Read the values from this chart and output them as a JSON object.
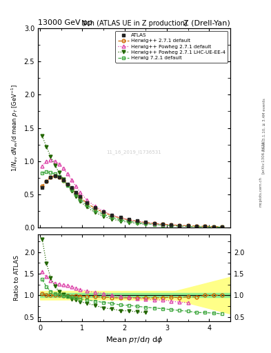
{
  "title_top": "13000 GeV pp",
  "title_right": "Z (Drell-Yan)",
  "plot_title": "Nch (ATLAS UE in Z production)",
  "ylabel_main": "1/N_{ev} dN_{ev}/d mean p_{T}  [GeV^{-1}]",
  "ylabel_ratio": "Ratio to ATLAS",
  "xlabel": "Mean p_{T}/dη dφ",
  "ylim_main": [
    0.0,
    3.0
  ],
  "ylim_ratio": [
    0.4,
    2.4
  ],
  "xlim": [
    -0.05,
    4.5
  ],
  "rivet_text": "Rivet 3.1.10, ≥ 3.4M events",
  "arxiv_text": "[arXiv:1306.3436]",
  "mcplots_text": "mcplots.cern.ch",
  "watermark": "11_16_2019_I1736531",
  "atlas_x": [
    0.05,
    0.15,
    0.25,
    0.35,
    0.45,
    0.55,
    0.65,
    0.75,
    0.85,
    0.95,
    1.1,
    1.3,
    1.5,
    1.7,
    1.9,
    2.1,
    2.3,
    2.5,
    2.7,
    2.9,
    3.1,
    3.3,
    3.5,
    3.7,
    3.9,
    4.1,
    4.3
  ],
  "atlas_y": [
    0.6,
    0.7,
    0.76,
    0.78,
    0.76,
    0.72,
    0.66,
    0.6,
    0.53,
    0.47,
    0.38,
    0.3,
    0.24,
    0.19,
    0.155,
    0.125,
    0.102,
    0.083,
    0.068,
    0.055,
    0.045,
    0.037,
    0.03,
    0.025,
    0.02,
    0.017,
    0.014
  ],
  "atlas_yerr": [
    0.015,
    0.015,
    0.015,
    0.015,
    0.015,
    0.015,
    0.012,
    0.012,
    0.01,
    0.01,
    0.008,
    0.007,
    0.006,
    0.005,
    0.004,
    0.003,
    0.003,
    0.002,
    0.002,
    0.002,
    0.001,
    0.001,
    0.001,
    0.001,
    0.001,
    0.001,
    0.001
  ],
  "hw271_x": [
    0.05,
    0.15,
    0.25,
    0.35,
    0.45,
    0.55,
    0.65,
    0.75,
    0.85,
    0.95,
    1.1,
    1.3,
    1.5,
    1.7,
    1.9,
    2.1,
    2.3,
    2.5,
    2.7,
    2.9,
    3.1,
    3.3,
    3.5,
    3.7,
    3.9,
    4.1,
    4.3
  ],
  "hw271_y": [
    0.62,
    0.7,
    0.76,
    0.78,
    0.76,
    0.71,
    0.65,
    0.58,
    0.52,
    0.46,
    0.37,
    0.29,
    0.23,
    0.18,
    0.145,
    0.118,
    0.096,
    0.078,
    0.064,
    0.052,
    0.043,
    0.035,
    0.029,
    0.024,
    0.02,
    0.017,
    0.014
  ],
  "hw271pow_x": [
    0.05,
    0.15,
    0.25,
    0.35,
    0.45,
    0.55,
    0.65,
    0.75,
    0.85,
    0.95,
    1.1,
    1.3,
    1.5,
    1.7,
    1.9,
    2.1,
    2.3,
    2.5,
    2.7,
    2.9,
    3.1,
    3.3,
    3.5
  ],
  "hw271pow_y": [
    0.93,
    1.0,
    1.02,
    1.0,
    0.96,
    0.89,
    0.81,
    0.72,
    0.62,
    0.53,
    0.42,
    0.32,
    0.25,
    0.19,
    0.15,
    0.12,
    0.095,
    0.076,
    0.061,
    0.049,
    0.039,
    0.031,
    0.025
  ],
  "hw271lhc_x": [
    0.05,
    0.15,
    0.25,
    0.35,
    0.45,
    0.55,
    0.65,
    0.75,
    0.85,
    0.95,
    1.1,
    1.3,
    1.5,
    1.7,
    1.9,
    2.1,
    2.3,
    2.5
  ],
  "hw271lhc_y": [
    1.38,
    1.22,
    1.07,
    0.94,
    0.83,
    0.73,
    0.64,
    0.55,
    0.47,
    0.4,
    0.31,
    0.23,
    0.17,
    0.13,
    0.1,
    0.08,
    0.063,
    0.05
  ],
  "hw721_x": [
    0.05,
    0.15,
    0.25,
    0.35,
    0.45,
    0.55,
    0.65,
    0.75,
    0.85,
    0.95,
    1.1,
    1.3,
    1.5,
    1.7,
    1.9,
    2.1,
    2.3,
    2.5,
    2.7,
    2.9,
    3.1,
    3.3,
    3.5,
    3.7,
    3.9,
    4.1,
    4.3
  ],
  "hw721_y": [
    0.82,
    0.84,
    0.83,
    0.81,
    0.77,
    0.71,
    0.64,
    0.57,
    0.5,
    0.43,
    0.34,
    0.26,
    0.2,
    0.155,
    0.12,
    0.096,
    0.076,
    0.06,
    0.048,
    0.038,
    0.03,
    0.024,
    0.019,
    0.015,
    0.012,
    0.01,
    0.008
  ],
  "color_atlas": "#222222",
  "color_hw271": "#cc6600",
  "color_hw271pow": "#dd44aa",
  "color_hw271lhc": "#226600",
  "color_hw721": "#44aa44",
  "color_inner_band": "#90EE90",
  "color_outer_band": "#FFFF88"
}
